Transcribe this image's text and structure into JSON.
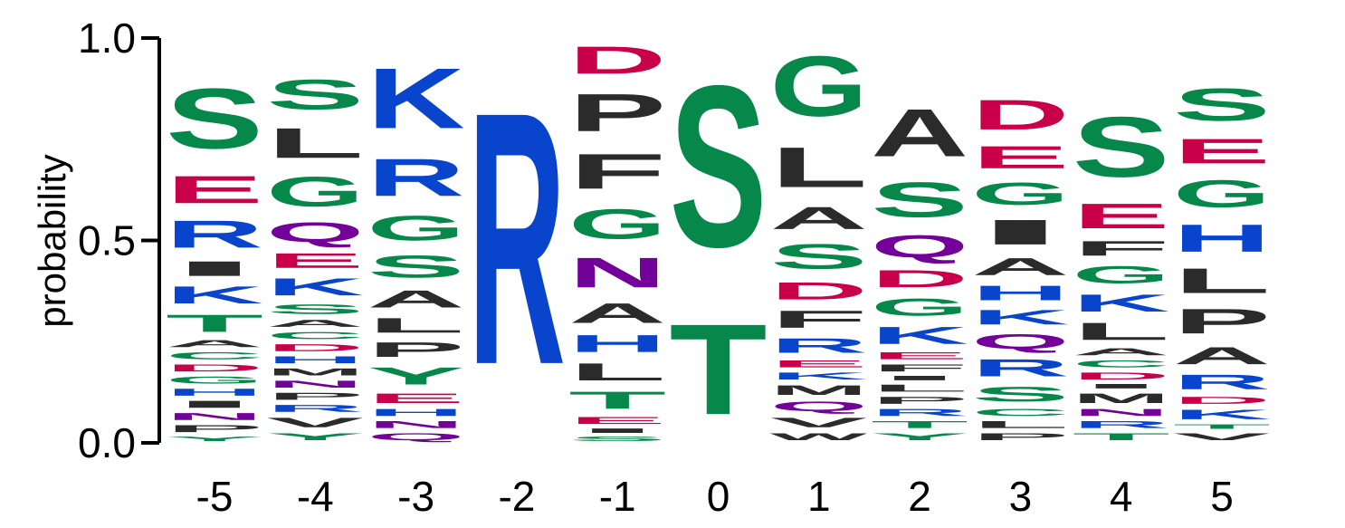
{
  "chart_data": {
    "type": "sequence-logo",
    "ylabel": "probability",
    "ylim": [
      0,
      1
    ],
    "yticks": [
      "0.0",
      "0.5",
      "1.0"
    ],
    "yticks_values": [
      0,
      0.5,
      1
    ],
    "positions": [
      "-5",
      "-4",
      "-3",
      "-2",
      "-1",
      "0",
      "1",
      "2",
      "3",
      "4",
      "5"
    ],
    "colors": {
      "S": "#06884a",
      "T": "#06884a",
      "G": "#06884a",
      "Y": "#06884a",
      "C": "#06884a",
      "N": "#720099",
      "Q": "#720099",
      "K": "#0844cc",
      "R": "#0844cc",
      "H": "#0844cc",
      "D": "#c90049",
      "E": "#c90049",
      "A": "#2b2b2b",
      "V": "#2b2b2b",
      "L": "#2b2b2b",
      "I": "#2b2b2b",
      "P": "#2b2b2b",
      "W": "#2b2b2b",
      "F": "#2b2b2b",
      "M": "#2b2b2b"
    },
    "columns": [
      {
        "position": "-5",
        "letters": [
          {
            "aa": "Y",
            "p": 0.02
          },
          {
            "aa": "P",
            "p": 0.03
          },
          {
            "aa": "N",
            "p": 0.03
          },
          {
            "aa": "I",
            "p": 0.03
          },
          {
            "aa": "H",
            "p": 0.03
          },
          {
            "aa": "G",
            "p": 0.03
          },
          {
            "aa": "D",
            "p": 0.03
          },
          {
            "aa": "C",
            "p": 0.03
          },
          {
            "aa": "A",
            "p": 0.03
          },
          {
            "aa": "T",
            "p": 0.07
          },
          {
            "aa": "K",
            "p": 0.07
          },
          {
            "aa": "I",
            "p": 0.06
          },
          {
            "aa": "R",
            "p": 0.11
          },
          {
            "aa": "E",
            "p": 0.11
          },
          {
            "aa": "S",
            "p": 0.24
          }
        ]
      },
      {
        "position": "-4",
        "letters": [
          {
            "aa": "Y",
            "p": 0.03
          },
          {
            "aa": "V",
            "p": 0.04
          },
          {
            "aa": "R",
            "p": 0.03
          },
          {
            "aa": "P",
            "p": 0.03
          },
          {
            "aa": "N",
            "p": 0.03
          },
          {
            "aa": "M",
            "p": 0.03
          },
          {
            "aa": "H",
            "p": 0.03
          },
          {
            "aa": "D",
            "p": 0.03
          },
          {
            "aa": "C",
            "p": 0.03
          },
          {
            "aa": "A",
            "p": 0.03
          },
          {
            "aa": "S",
            "p": 0.04
          },
          {
            "aa": "K",
            "p": 0.07
          },
          {
            "aa": "E",
            "p": 0.06
          },
          {
            "aa": "Q",
            "p": 0.08
          },
          {
            "aa": "G",
            "p": 0.12
          },
          {
            "aa": "L",
            "p": 0.12
          },
          {
            "aa": "S",
            "p": 0.12
          }
        ]
      },
      {
        "position": "-3",
        "letters": [
          {
            "aa": "Q",
            "p": 0.03
          },
          {
            "aa": "N",
            "p": 0.03
          },
          {
            "aa": "H",
            "p": 0.03
          },
          {
            "aa": "E",
            "p": 0.04
          },
          {
            "aa": "Y",
            "p": 0.07
          },
          {
            "aa": "P",
            "p": 0.06
          },
          {
            "aa": "L",
            "p": 0.06
          },
          {
            "aa": "A",
            "p": 0.07
          },
          {
            "aa": "S",
            "p": 0.09
          },
          {
            "aa": "G",
            "p": 0.1
          },
          {
            "aa": "R",
            "p": 0.15
          },
          {
            "aa": "K",
            "p": 0.24
          }
        ]
      },
      {
        "position": "-2",
        "letters": [
          {
            "aa": "R",
            "p": 1.0
          }
        ]
      },
      {
        "position": "-1",
        "letters": [
          {
            "aa": "S",
            "p": 0.02
          },
          {
            "aa": "I",
            "p": 0.02
          },
          {
            "aa": "E",
            "p": 0.03
          },
          {
            "aa": "T",
            "p": 0.07
          },
          {
            "aa": "L",
            "p": 0.07
          },
          {
            "aa": "H",
            "p": 0.07
          },
          {
            "aa": "A",
            "p": 0.08
          },
          {
            "aa": "N",
            "p": 0.12
          },
          {
            "aa": "G",
            "p": 0.12
          },
          {
            "aa": "F",
            "p": 0.14
          },
          {
            "aa": "P",
            "p": 0.15
          },
          {
            "aa": "D",
            "p": 0.11
          }
        ]
      },
      {
        "position": "0",
        "letters": [
          {
            "aa": "T",
            "p": 0.36
          },
          {
            "aa": "S",
            "p": 0.64
          }
        ]
      },
      {
        "position": "1",
        "letters": [
          {
            "aa": "W",
            "p": 0.03
          },
          {
            "aa": "V",
            "p": 0.04
          },
          {
            "aa": "Q",
            "p": 0.04
          },
          {
            "aa": "M",
            "p": 0.04
          },
          {
            "aa": "K",
            "p": 0.03
          },
          {
            "aa": "E",
            "p": 0.03
          },
          {
            "aa": "R",
            "p": 0.06
          },
          {
            "aa": "F",
            "p": 0.07
          },
          {
            "aa": "D",
            "p": 0.07
          },
          {
            "aa": "S",
            "p": 0.1
          },
          {
            "aa": "A",
            "p": 0.09
          },
          {
            "aa": "L",
            "p": 0.16
          },
          {
            "aa": "G",
            "p": 0.24
          }
        ]
      },
      {
        "position": "2",
        "letters": [
          {
            "aa": "Y",
            "p": 0.03
          },
          {
            "aa": "T",
            "p": 0.03
          },
          {
            "aa": "R",
            "p": 0.03
          },
          {
            "aa": "P",
            "p": 0.03
          },
          {
            "aa": "L",
            "p": 0.03
          },
          {
            "aa": "I",
            "p": 0.02
          },
          {
            "aa": "F",
            "p": 0.03
          },
          {
            "aa": "E",
            "p": 0.03
          },
          {
            "aa": "K",
            "p": 0.07
          },
          {
            "aa": "G",
            "p": 0.07
          },
          {
            "aa": "D",
            "p": 0.07
          },
          {
            "aa": "Q",
            "p": 0.09
          },
          {
            "aa": "S",
            "p": 0.14
          },
          {
            "aa": "A",
            "p": 0.19
          }
        ]
      },
      {
        "position": "3",
        "letters": [
          {
            "aa": "P",
            "p": 0.03
          },
          {
            "aa": "L",
            "p": 0.03
          },
          {
            "aa": "C",
            "p": 0.03
          },
          {
            "aa": "S",
            "p": 0.06
          },
          {
            "aa": "R",
            "p": 0.07
          },
          {
            "aa": "Q",
            "p": 0.06
          },
          {
            "aa": "K",
            "p": 0.06
          },
          {
            "aa": "H",
            "p": 0.06
          },
          {
            "aa": "A",
            "p": 0.07
          },
          {
            "aa": "I",
            "p": 0.1
          },
          {
            "aa": "G",
            "p": 0.09
          },
          {
            "aa": "E",
            "p": 0.09
          },
          {
            "aa": "D",
            "p": 0.12
          }
        ]
      },
      {
        "position": "4",
        "letters": [
          {
            "aa": "T",
            "p": 0.03
          },
          {
            "aa": "R",
            "p": 0.03
          },
          {
            "aa": "N",
            "p": 0.03
          },
          {
            "aa": "M",
            "p": 0.04
          },
          {
            "aa": "I",
            "p": 0.02
          },
          {
            "aa": "D",
            "p": 0.03
          },
          {
            "aa": "C",
            "p": 0.03
          },
          {
            "aa": "A",
            "p": 0.03
          },
          {
            "aa": "L",
            "p": 0.07
          },
          {
            "aa": "K",
            "p": 0.07
          },
          {
            "aa": "G",
            "p": 0.07
          },
          {
            "aa": "F",
            "p": 0.06
          },
          {
            "aa": "E",
            "p": 0.1
          },
          {
            "aa": "S",
            "p": 0.24
          }
        ]
      },
      {
        "position": "5",
        "letters": [
          {
            "aa": "V",
            "p": 0.03
          },
          {
            "aa": "T",
            "p": 0.02
          },
          {
            "aa": "K",
            "p": 0.04
          },
          {
            "aa": "D",
            "p": 0.03
          },
          {
            "aa": "R",
            "p": 0.06
          },
          {
            "aa": "A",
            "p": 0.07
          },
          {
            "aa": "P",
            "p": 0.1
          },
          {
            "aa": "L",
            "p": 0.1
          },
          {
            "aa": "H",
            "p": 0.11
          },
          {
            "aa": "G",
            "p": 0.11
          },
          {
            "aa": "E",
            "p": 0.1
          },
          {
            "aa": "S",
            "p": 0.13
          }
        ]
      }
    ]
  }
}
